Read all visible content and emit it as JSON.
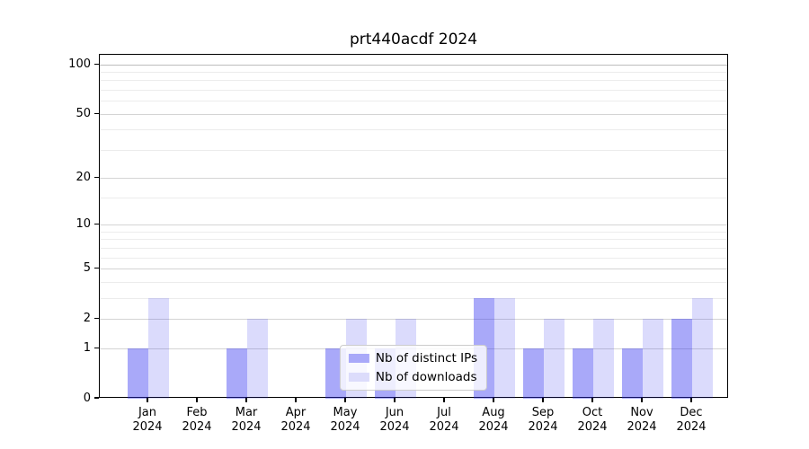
{
  "title": "prt440acdf 2024",
  "chart_data": {
    "type": "bar",
    "title": "prt440acdf 2024",
    "categories": [
      "Jan 2024",
      "Feb 2024",
      "Mar 2024",
      "Apr 2024",
      "May 2024",
      "Jun 2024",
      "Jul 2024",
      "Aug 2024",
      "Sep 2024",
      "Oct 2024",
      "Nov 2024",
      "Dec 2024"
    ],
    "series": [
      {
        "name": "Nb of distinct IPs",
        "color": "rgba(40,40,240,0.40)",
        "solid_color": "#a9a9f9",
        "values": [
          1,
          0,
          1,
          0,
          1,
          1,
          0,
          3,
          1,
          1,
          1,
          2
        ]
      },
      {
        "name": "Nb of downloads",
        "color": "rgba(40,40,240,0.17)",
        "solid_color": "#dcdcfb",
        "values": [
          3,
          0,
          2,
          0,
          2,
          2,
          0,
          3,
          2,
          2,
          2,
          3
        ]
      }
    ],
    "xlabel": "",
    "ylabel": "",
    "y_scale": "log10(1+x)",
    "ylim": [
      0,
      115
    ],
    "y_ticks": [
      0,
      1,
      2,
      5,
      10,
      20,
      50,
      100
    ],
    "y_minor_gridlines": [
      3,
      4,
      6,
      7,
      8,
      9,
      15,
      30,
      40,
      60,
      70,
      80,
      90
    ],
    "grid": "horizontal",
    "legend_position": "lower center inside",
    "colors": {
      "axis": "#000000",
      "major_grid": "#d4d4d4",
      "top_major_grid": "#bdbdbd",
      "minor_grid": "#ececec",
      "legend_border": "#cccccc"
    }
  }
}
